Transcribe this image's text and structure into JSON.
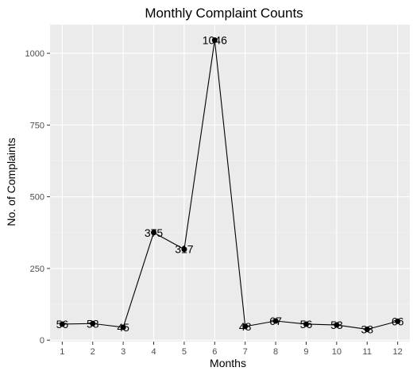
{
  "chart_data": {
    "type": "line",
    "title": "Monthly Complaint Counts",
    "xlabel": "Months",
    "ylabel": "No. of Complaints",
    "x": [
      1,
      2,
      3,
      4,
      5,
      6,
      7,
      8,
      9,
      10,
      11,
      12
    ],
    "series": [
      {
        "values": [
          56,
          58,
          45,
          375,
          317,
          1046,
          48,
          67,
          56,
          53,
          38,
          66
        ]
      }
    ],
    "data_labels": [
      "56",
      "58",
      "45",
      "375",
      "317",
      "1046",
      "48",
      "67",
      "56",
      "53",
      "38",
      "66"
    ],
    "xlim": [
      0.6,
      12.4
    ],
    "ylim": [
      -5,
      1100
    ],
    "y_ticks": [
      0,
      250,
      500,
      750,
      1000
    ],
    "y_minor_ticks": [
      125,
      375,
      625,
      875
    ],
    "x_ticks": [
      1,
      2,
      3,
      4,
      5,
      6,
      7,
      8,
      9,
      10,
      11,
      12
    ],
    "grid": true,
    "colors": {
      "panel_background": "#ebebeb",
      "grid_major": "#ffffff",
      "grid_minor": "#f5f5f5",
      "line": "#000000",
      "point": "#000000",
      "tick_text": "#4d4d4d"
    }
  }
}
